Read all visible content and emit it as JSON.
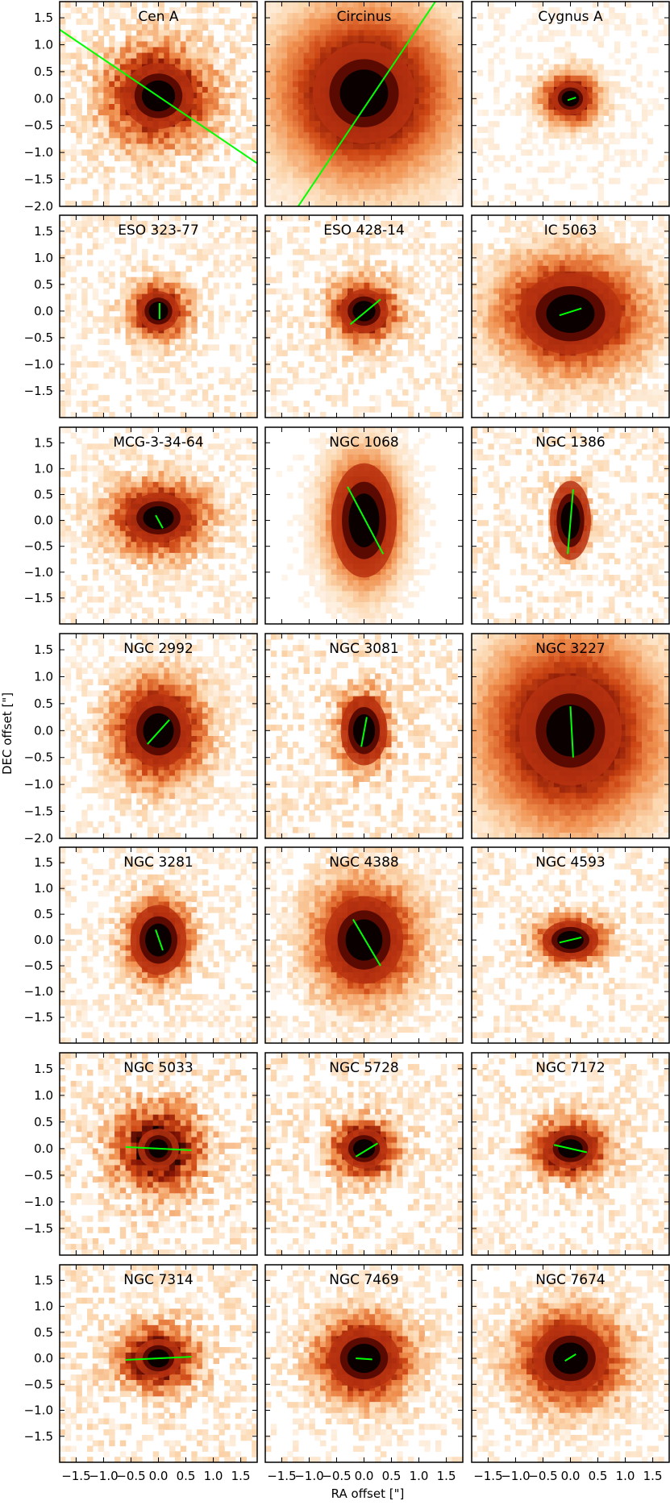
{
  "chart_data": {
    "type": "heatmap",
    "xlabel": "RA offset [\"]",
    "ylabel": "DEC offset [\"]",
    "xlim": [
      -1.8,
      1.8
    ],
    "ylim": [
      -2.0,
      1.8
    ],
    "colormap": "white to orange-red to black",
    "axis_line_color": "#00ff00",
    "x_ticks": [
      -1.5,
      -1.0,
      -0.5,
      0.0,
      0.5,
      1.0,
      1.5
    ],
    "x_tick_labels": [
      "−1.5",
      "−1.0",
      "−0.5",
      "0.0",
      "0.5",
      "1.0",
      "1.5"
    ],
    "y_ticks": [
      1.5,
      1.0,
      0.5,
      0.0,
      -0.5,
      -1.0,
      -1.5
    ],
    "y_tick_labels": [
      "1.5",
      "1.0",
      "0.5",
      "0.0",
      "−0.5",
      "−1.0",
      "−1.5"
    ],
    "y_ticks_extra": [
      -2.0
    ],
    "y_tick_labels_extra": [
      "−2.0"
    ],
    "rows": 7,
    "cols": 3,
    "panels": [
      {
        "name": "Cen A",
        "core_x": 0.0,
        "core_y": 0.05,
        "core_rx": 0.38,
        "core_ry": 0.36,
        "halo_r": 1.1,
        "spread": 0.55,
        "noise": 0.55,
        "line": [
          [
            -1.8,
            1.28
          ],
          [
            1.8,
            -1.2
          ]
        ]
      },
      {
        "name": "Circinus",
        "core_x": 0.0,
        "core_y": 0.1,
        "core_rx": 0.55,
        "core_ry": 0.55,
        "halo_r": 1.5,
        "spread": 0.9,
        "noise": 0.12,
        "line": [
          [
            -1.2,
            -2.0
          ],
          [
            1.3,
            1.8
          ]
        ]
      },
      {
        "name": "Cygnus A",
        "core_x": 0.0,
        "core_y": 0.0,
        "core_rx": 0.2,
        "core_ry": 0.18,
        "halo_r": 0.7,
        "spread": 0.3,
        "noise": 0.3,
        "line": [
          [
            -0.05,
            -0.03
          ],
          [
            0.1,
            0.02
          ]
        ]
      },
      {
        "name": "ESO 323-77",
        "core_x": 0.0,
        "core_y": 0.0,
        "core_rx": 0.22,
        "core_ry": 0.22,
        "halo_r": 0.7,
        "spread": 0.3,
        "noise": 0.5,
        "line": [
          [
            0.02,
            -0.15
          ],
          [
            0.02,
            0.15
          ]
        ]
      },
      {
        "name": "ESO 428-14",
        "core_x": 0.0,
        "core_y": 0.0,
        "core_rx": 0.26,
        "core_ry": 0.24,
        "halo_r": 0.8,
        "spread": 0.35,
        "noise": 0.5,
        "line": [
          [
            -0.25,
            -0.25
          ],
          [
            0.3,
            0.22
          ]
        ]
      },
      {
        "name": "IC 5063",
        "core_x": 0.0,
        "core_y": -0.05,
        "core_rx": 0.55,
        "core_ry": 0.45,
        "halo_r": 1.5,
        "spread": 0.75,
        "noise": 0.3,
        "line": [
          [
            -0.2,
            -0.08
          ],
          [
            0.2,
            0.05
          ]
        ]
      },
      {
        "name": "MCG-3-34-64",
        "core_x": 0.0,
        "core_y": 0.05,
        "core_rx": 0.35,
        "core_ry": 0.28,
        "halo_r": 1.1,
        "spread": 0.5,
        "noise": 0.45,
        "line": [
          [
            -0.05,
            0.1
          ],
          [
            0.08,
            -0.15
          ]
        ]
      },
      {
        "name": "NGC 1068",
        "core_x": 0.0,
        "core_y": 0.0,
        "core_rx": 0.35,
        "core_ry": 0.65,
        "halo_r": 1.5,
        "spread": 0.7,
        "noise": 0.15,
        "line": [
          [
            -0.3,
            0.65
          ],
          [
            0.35,
            -0.65
          ]
        ]
      },
      {
        "name": "NGC 1386",
        "core_x": 0.0,
        "core_y": 0.0,
        "core_rx": 0.22,
        "core_ry": 0.45,
        "halo_r": 0.9,
        "spread": 0.35,
        "noise": 0.55,
        "line": [
          [
            -0.05,
            -0.65
          ],
          [
            0.05,
            0.6
          ]
        ]
      },
      {
        "name": "NGC 2992",
        "core_x": 0.0,
        "core_y": 0.0,
        "core_rx": 0.35,
        "core_ry": 0.4,
        "halo_r": 1.2,
        "spread": 0.55,
        "noise": 0.4,
        "line": [
          [
            -0.2,
            -0.25
          ],
          [
            0.2,
            0.2
          ]
        ]
      },
      {
        "name": "NGC 3081",
        "core_x": 0.0,
        "core_y": 0.0,
        "core_rx": 0.25,
        "core_ry": 0.38,
        "halo_r": 0.9,
        "spread": 0.4,
        "noise": 0.6,
        "line": [
          [
            -0.05,
            -0.3
          ],
          [
            0.05,
            0.25
          ]
        ]
      },
      {
        "name": "NGC 3227",
        "core_x": 0.0,
        "core_y": 0.0,
        "core_rx": 0.55,
        "core_ry": 0.6,
        "halo_r": 1.7,
        "spread": 1.0,
        "noise": 0.15,
        "line": [
          [
            0.0,
            0.45
          ],
          [
            0.05,
            -0.5
          ]
        ]
      },
      {
        "name": "NGC 3281",
        "core_x": 0.0,
        "core_y": 0.0,
        "core_rx": 0.3,
        "core_ry": 0.4,
        "halo_r": 1.0,
        "spread": 0.45,
        "noise": 0.45,
        "line": [
          [
            -0.05,
            0.2
          ],
          [
            0.08,
            -0.2
          ]
        ]
      },
      {
        "name": "NGC 4388",
        "core_x": 0.0,
        "core_y": 0.0,
        "core_rx": 0.42,
        "core_ry": 0.5,
        "halo_r": 1.4,
        "spread": 0.65,
        "noise": 0.35,
        "line": [
          [
            -0.2,
            0.4
          ],
          [
            0.3,
            -0.5
          ]
        ]
      },
      {
        "name": "NGC 4593",
        "core_x": 0.0,
        "core_y": 0.0,
        "core_rx": 0.3,
        "core_ry": 0.22,
        "halo_r": 0.8,
        "spread": 0.35,
        "noise": 0.5,
        "line": [
          [
            -0.2,
            -0.05
          ],
          [
            0.2,
            0.05
          ]
        ]
      },
      {
        "name": "NGC 5033",
        "core_x": 0.0,
        "core_y": 0.0,
        "core_rx": 0.22,
        "core_ry": 0.22,
        "halo_r": 1.0,
        "spread": 0.45,
        "noise": 0.65,
        "line": [
          [
            -0.6,
            0.03
          ],
          [
            0.6,
            -0.03
          ]
        ]
      },
      {
        "name": "NGC 5728",
        "core_x": 0.0,
        "core_y": 0.0,
        "core_rx": 0.25,
        "core_ry": 0.22,
        "halo_r": 0.8,
        "spread": 0.35,
        "noise": 0.6,
        "line": [
          [
            -0.15,
            -0.15
          ],
          [
            0.25,
            0.1
          ]
        ]
      },
      {
        "name": "NGC 7172",
        "core_x": 0.0,
        "core_y": 0.0,
        "core_rx": 0.28,
        "core_ry": 0.22,
        "halo_r": 0.9,
        "spread": 0.4,
        "noise": 0.55,
        "line": [
          [
            -0.3,
            0.07
          ],
          [
            0.3,
            -0.07
          ]
        ]
      },
      {
        "name": "NGC 7314",
        "core_x": 0.0,
        "core_y": 0.0,
        "core_rx": 0.25,
        "core_ry": 0.22,
        "halo_r": 0.9,
        "spread": 0.4,
        "noise": 0.6,
        "line": [
          [
            -0.6,
            -0.03
          ],
          [
            0.6,
            0.03
          ]
        ]
      },
      {
        "name": "NGC 7469",
        "core_x": 0.0,
        "core_y": 0.0,
        "core_rx": 0.38,
        "core_ry": 0.35,
        "halo_r": 1.1,
        "spread": 0.5,
        "noise": 0.45,
        "line": [
          [
            -0.15,
            0.0
          ],
          [
            0.15,
            -0.02
          ]
        ]
      },
      {
        "name": "NGC 7674",
        "core_x": 0.0,
        "core_y": 0.0,
        "core_rx": 0.4,
        "core_ry": 0.38,
        "halo_r": 1.2,
        "spread": 0.55,
        "noise": 0.4,
        "line": [
          [
            -0.1,
            -0.05
          ],
          [
            0.1,
            0.08
          ]
        ]
      }
    ]
  }
}
